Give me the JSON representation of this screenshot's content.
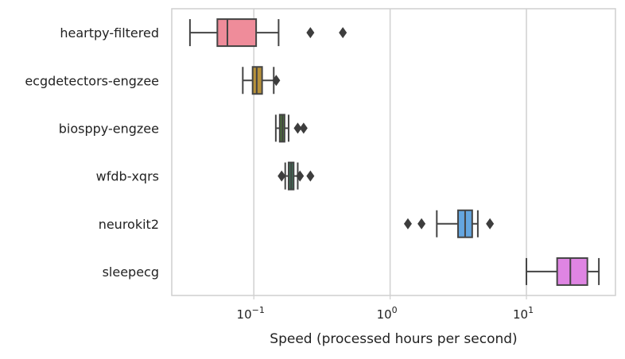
{
  "chart_data": {
    "type": "box",
    "title": "",
    "xlabel": "Speed (processed hours per second)",
    "ylabel": "",
    "xscale": "log",
    "xlim": [
      0.025,
      45
    ],
    "grid": "vertical",
    "x_ticks": [
      {
        "value": 0.1,
        "base": "10",
        "exp": "−1"
      },
      {
        "value": 1,
        "base": "10",
        "exp": "0"
      },
      {
        "value": 10,
        "base": "10",
        "exp": "1"
      }
    ],
    "categories": [
      "heartpy-filtered",
      "ecgdetectors-engzee",
      "biosppy-engzee",
      "wfdb-xqrs",
      "neurokit2",
      "sleepecg"
    ],
    "boxes": [
      {
        "label": "heartpy-filtered",
        "color": "#ef8c9a",
        "whisker_low": 0.034,
        "q1": 0.054,
        "median": 0.064,
        "q3": 0.104,
        "whisker_high": 0.152,
        "outliers": [
          0.26,
          0.45
        ]
      },
      {
        "label": "ecgdetectors-engzee",
        "color": "#b7913a",
        "whisker_low": 0.083,
        "q1": 0.098,
        "median": 0.105,
        "q3": 0.115,
        "whisker_high": 0.14,
        "outliers": [
          0.146
        ]
      },
      {
        "label": "biosppy-engzee",
        "color": "#4d7a38",
        "whisker_low": 0.145,
        "q1": 0.155,
        "median": 0.162,
        "q3": 0.168,
        "whisker_high": 0.18,
        "outliers": [
          0.21,
          0.232
        ]
      },
      {
        "label": "wfdb-xqrs",
        "color": "#3f7359",
        "whisker_low": 0.17,
        "q1": 0.18,
        "median": 0.188,
        "q3": 0.196,
        "whisker_high": 0.21,
        "outliers": [
          0.16,
          0.218,
          0.26
        ]
      },
      {
        "label": "neurokit2",
        "color": "#64a6e0",
        "whisker_low": 2.2,
        "q1": 3.15,
        "median": 3.55,
        "q3": 4.0,
        "whisker_high": 4.4,
        "outliers": [
          1.35,
          1.7,
          5.4
        ]
      },
      {
        "label": "sleepecg",
        "color": "#df85e3",
        "whisker_low": 10,
        "q1": 16.8,
        "median": 21,
        "q3": 28,
        "whisker_high": 34,
        "outliers": []
      }
    ]
  }
}
